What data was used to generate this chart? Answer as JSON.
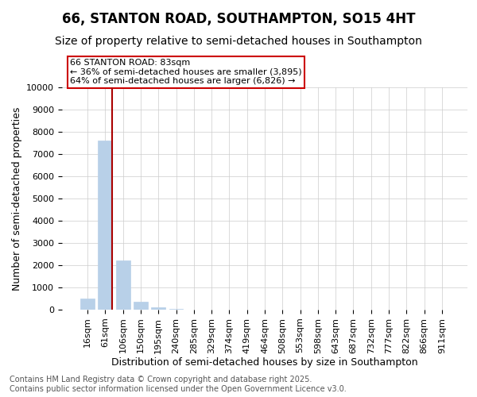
{
  "title": "66, STANTON ROAD, SOUTHAMPTON, SO15 4HT",
  "subtitle": "Size of property relative to semi-detached houses in Southampton",
  "xlabel": "Distribution of semi-detached houses by size in Southampton",
  "ylabel": "Number of semi-detached properties",
  "categories": [
    "16sqm",
    "61sqm",
    "106sqm",
    "150sqm",
    "195sqm",
    "240sqm",
    "285sqm",
    "329sqm",
    "374sqm",
    "419sqm",
    "464sqm",
    "508sqm",
    "553sqm",
    "598sqm",
    "643sqm",
    "687sqm",
    "732sqm",
    "777sqm",
    "822sqm",
    "866sqm",
    "911sqm"
  ],
  "values": [
    490,
    7600,
    2200,
    350,
    100,
    50,
    15,
    5,
    3,
    2,
    1,
    1,
    1,
    0,
    0,
    0,
    0,
    0,
    0,
    0,
    0
  ],
  "bar_color": "#b8d0e8",
  "bar_edge_color": "#b8d0e8",
  "grid_color": "#cccccc",
  "background_color": "#ffffff",
  "annotation_line1": "66 STANTON ROAD: 83sqm",
  "annotation_line2": "← 36% of semi-detached houses are smaller (3,895)",
  "annotation_line3": "64% of semi-detached houses are larger (6,826) →",
  "redline_color": "#aa0000",
  "annotation_box_color": "#ffffff",
  "annotation_box_edge_color": "#cc0000",
  "ylim": [
    0,
    10000
  ],
  "yticks": [
    0,
    1000,
    2000,
    3000,
    4000,
    5000,
    6000,
    7000,
    8000,
    9000,
    10000
  ],
  "footer": "Contains HM Land Registry data © Crown copyright and database right 2025.\nContains public sector information licensed under the Open Government Licence v3.0.",
  "title_fontsize": 12,
  "subtitle_fontsize": 10,
  "axis_label_fontsize": 9,
  "tick_fontsize": 8,
  "footer_fontsize": 7,
  "annotation_fontsize": 8
}
